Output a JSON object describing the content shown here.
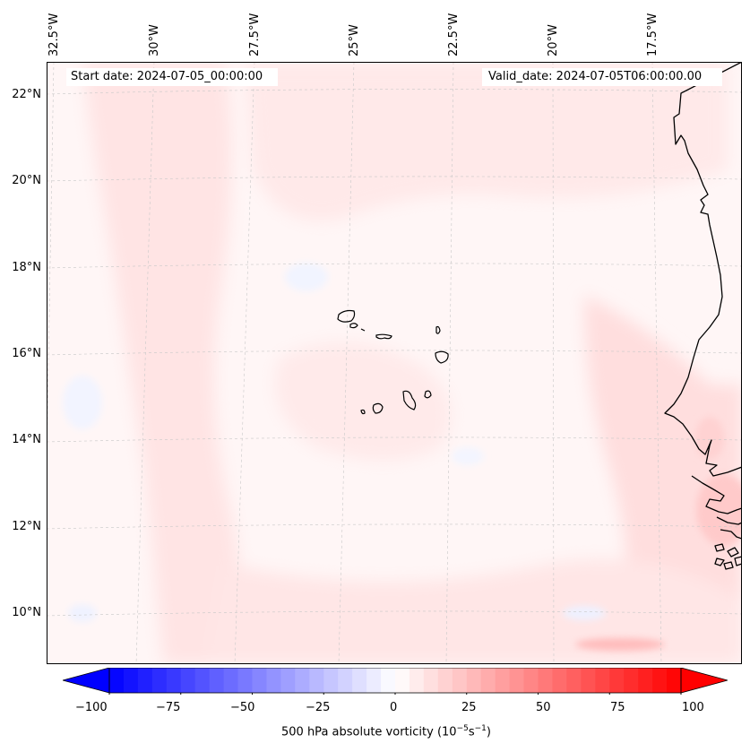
{
  "header": {
    "start_date": "Start date: 2024-07-05_00:00:00",
    "valid_date": "Valid_date: 2024-07-05T06:00:00.00"
  },
  "longitude_labels": [
    "32.5°W",
    "30°W",
    "27.5°W",
    "25°W",
    "22.5°W",
    "20°W",
    "17.5°W"
  ],
  "latitude_labels": [
    "22°N",
    "20°N",
    "18°N",
    "16°N",
    "14°N",
    "12°N",
    "10°N"
  ],
  "colorbar": {
    "label": "500 hPa absolute vorticity (10",
    "label_exp1": "−5",
    "label_mid": "s",
    "label_exp2": "−1",
    "label_end": ")",
    "ticks": [
      "−100",
      "−75",
      "−50",
      "−25",
      "0",
      "25",
      "50",
      "75",
      "100"
    ],
    "min": -100,
    "max": 100,
    "colors": {
      "negative": "#0000ff",
      "positive": "#ff0000",
      "center": "#ffffff"
    }
  },
  "colors": {
    "coastline": "#000000",
    "gridline": "#b0b0b0"
  }
}
